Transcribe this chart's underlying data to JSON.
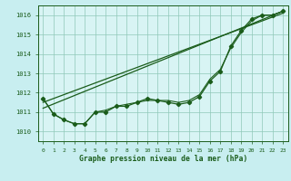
{
  "title": "Graphe pression niveau de la mer (hPa)",
  "bg_color": "#c8eef0",
  "plot_bg_color": "#d8f4f4",
  "line_color": "#1a5c1a",
  "grid_color": "#90c8b8",
  "x_ticks": [
    0,
    1,
    2,
    3,
    4,
    5,
    6,
    7,
    8,
    9,
    10,
    11,
    12,
    13,
    14,
    15,
    16,
    17,
    18,
    19,
    20,
    21,
    22,
    23
  ],
  "xlim": [
    -0.5,
    23.5
  ],
  "ylim": [
    1009.5,
    1016.5
  ],
  "y_ticks": [
    1010,
    1011,
    1012,
    1013,
    1014,
    1015,
    1016
  ],
  "main_x": [
    0,
    1,
    2,
    3,
    4,
    5,
    6,
    7,
    8,
    9,
    10,
    11,
    12,
    13,
    14,
    15,
    16,
    17,
    18,
    19,
    20,
    21,
    22,
    23
  ],
  "main_y": [
    1011.7,
    1010.9,
    1010.6,
    1010.4,
    1010.4,
    1011.0,
    1011.0,
    1011.3,
    1011.3,
    1011.5,
    1011.7,
    1011.6,
    1011.5,
    1011.4,
    1011.5,
    1011.8,
    1012.6,
    1013.1,
    1014.4,
    1015.2,
    1015.8,
    1016.0,
    1016.0,
    1016.2
  ],
  "line1_x": [
    0,
    23
  ],
  "line1_y": [
    1011.5,
    1016.1
  ],
  "line2_x": [
    0,
    23
  ],
  "line2_y": [
    1011.2,
    1016.2
  ],
  "smooth_x": [
    0,
    1,
    2,
    3,
    4,
    5,
    6,
    7,
    8,
    9,
    10,
    11,
    12,
    13,
    14,
    15,
    16,
    17,
    18,
    19,
    20,
    21,
    22,
    23
  ],
  "smooth_y": [
    1011.7,
    1010.9,
    1010.6,
    1010.4,
    1010.4,
    1011.0,
    1011.1,
    1011.3,
    1011.4,
    1011.5,
    1011.6,
    1011.6,
    1011.6,
    1011.5,
    1011.6,
    1011.9,
    1012.7,
    1013.2,
    1014.3,
    1015.1,
    1015.7,
    1016.0,
    1016.0,
    1016.2
  ]
}
